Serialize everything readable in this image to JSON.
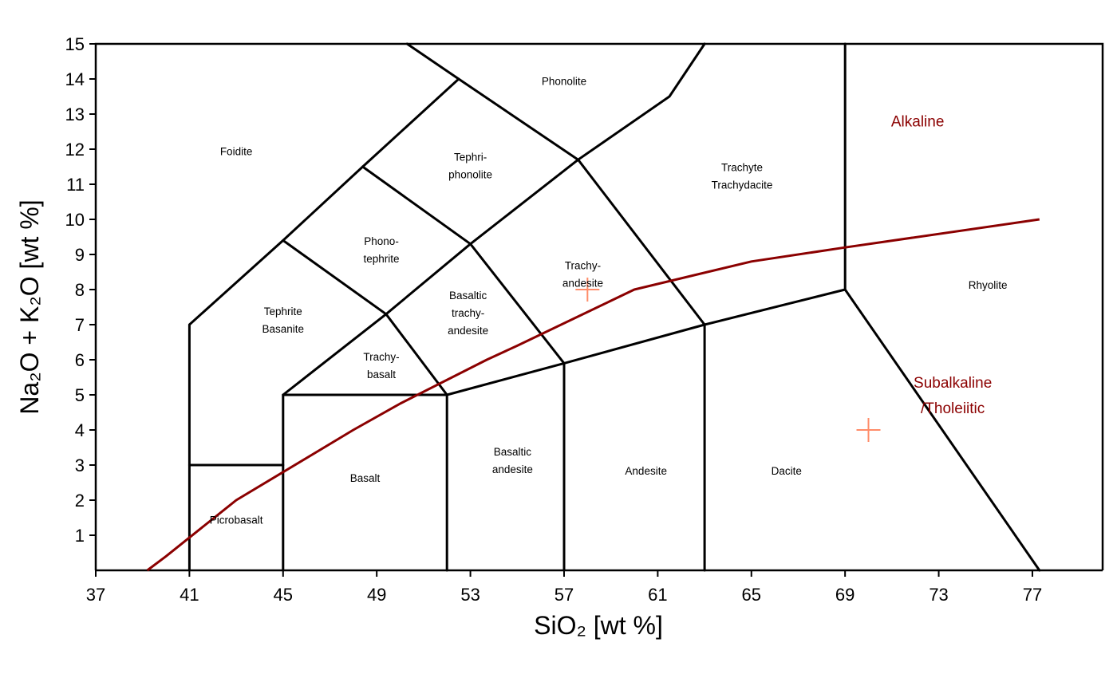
{
  "chart_data": {
    "type": "scatter",
    "xlabel": "SiO₂ [wt %]",
    "ylabel": "Na₂O + K₂O [wt %]",
    "xlim": [
      37,
      80
    ],
    "ylim": [
      0,
      15
    ],
    "x_ticks": [
      37,
      41,
      45,
      49,
      53,
      57,
      61,
      65,
      69,
      73,
      77
    ],
    "y_ticks": [
      1,
      2,
      3,
      4,
      5,
      6,
      7,
      8,
      9,
      10,
      11,
      12,
      13,
      14,
      15
    ],
    "grid": false,
    "boundaries": [
      [
        [
          41,
          0
        ],
        [
          41,
          7
        ],
        [
          45,
          9.4
        ],
        [
          48.4,
          11.5
        ],
        [
          52.5,
          14
        ],
        [
          50.3,
          15
        ]
      ],
      [
        [
          41,
          3
        ],
        [
          45,
          3
        ],
        [
          45,
          0
        ]
      ],
      [
        [
          45,
          3
        ],
        [
          45,
          5
        ],
        [
          52,
          5
        ],
        [
          52,
          0
        ]
      ],
      [
        [
          45,
          9.4
        ],
        [
          49.4,
          7.3
        ],
        [
          53,
          9.3
        ],
        [
          57.6,
          11.7
        ],
        [
          61.5,
          13.5
        ],
        [
          63,
          15
        ]
      ],
      [
        [
          45,
          5
        ],
        [
          49.4,
          7.3
        ],
        [
          52,
          5
        ]
      ],
      [
        [
          48.4,
          11.5
        ],
        [
          53,
          9.3
        ],
        [
          57,
          5.9
        ],
        [
          57,
          0
        ]
      ],
      [
        [
          52.5,
          14
        ],
        [
          57.6,
          11.7
        ],
        [
          63,
          7
        ],
        [
          63,
          0
        ]
      ],
      [
        [
          52,
          5
        ],
        [
          57,
          5.9
        ],
        [
          63,
          7
        ],
        [
          69,
          8
        ],
        [
          69,
          15
        ]
      ],
      [
        [
          69,
          8
        ],
        [
          77.3,
          0
        ]
      ]
    ],
    "fields": [
      {
        "lines": [
          "Foidite"
        ],
        "x": 43,
        "y": 12
      },
      {
        "lines": [
          "Phonolite"
        ],
        "x": 57,
        "y": 14
      },
      {
        "lines": [
          "Tephri-",
          "phonolite"
        ],
        "x": 53,
        "y": 11.6
      },
      {
        "lines": [
          "Trachyte",
          "Trachydacite"
        ],
        "x": 64.6,
        "y": 11.3
      },
      {
        "lines": [
          "Phono-",
          "tephrite"
        ],
        "x": 49.2,
        "y": 9.2
      },
      {
        "lines": [
          "Trachy-",
          "andesite"
        ],
        "x": 57.8,
        "y": 8.5
      },
      {
        "lines": [
          "Tephrite",
          "Basanite"
        ],
        "x": 45,
        "y": 7.2
      },
      {
        "lines": [
          "Basaltic",
          "trachy-",
          "andesite"
        ],
        "x": 52.9,
        "y": 7.4
      },
      {
        "lines": [
          "Trachy-",
          "basalt"
        ],
        "x": 49.2,
        "y": 5.9
      },
      {
        "lines": [
          "Rhyolite"
        ],
        "x": 75.1,
        "y": 8.2
      },
      {
        "lines": [
          "Basalt"
        ],
        "x": 48.5,
        "y": 2.7
      },
      {
        "lines": [
          "Basaltic",
          "andesite"
        ],
        "x": 54.8,
        "y": 3.2
      },
      {
        "lines": [
          "Andesite"
        ],
        "x": 60.5,
        "y": 2.9
      },
      {
        "lines": [
          "Dacite"
        ],
        "x": 66.5,
        "y": 2.9
      },
      {
        "lines": [
          "Picrobasalt"
        ],
        "x": 43,
        "y": 1.5
      }
    ],
    "divider": [
      [
        39.2,
        0
      ],
      [
        40,
        0.4
      ],
      [
        43,
        2
      ],
      [
        45,
        2.8
      ],
      [
        48,
        4
      ],
      [
        50,
        4.75
      ],
      [
        53.7,
        6
      ],
      [
        55,
        6.4
      ],
      [
        60,
        8
      ],
      [
        65,
        8.8
      ],
      [
        69,
        9.2
      ],
      [
        77.3,
        10
      ]
    ],
    "series": [
      {
        "lines": [
          "Alkaline"
        ],
        "x": 72.1,
        "y": 12.9
      },
      {
        "lines": [
          "Subalkaline",
          "/Tholeiitic"
        ],
        "x": 73.6,
        "y": 5.1
      }
    ],
    "points": [
      {
        "x": 58,
        "y": 8
      },
      {
        "x": 70,
        "y": 4
      }
    ],
    "colors": {
      "boundary": "#000000",
      "divider": "#8b0000",
      "points": "#ff8c69"
    }
  }
}
